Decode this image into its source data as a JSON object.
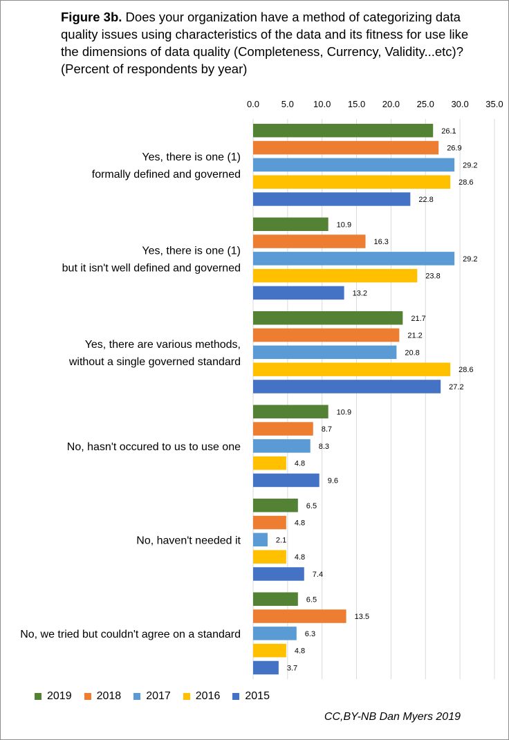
{
  "title": {
    "bold": "Figure 3b.",
    "text": " Does your organization have a method of categorizing data quality issues using characteristics of the data and its fitness for use like the dimensions of data quality (Completeness, Currency, Validity...etc)? (Percent of respondents by year)"
  },
  "credit": "CC,BY-NB Dan Myers 2019",
  "colors": {
    "2019": "#548235",
    "2018": "#ed7d31",
    "2017": "#5b9bd5",
    "2016": "#ffc000",
    "2015": "#4472c4"
  },
  "chart_data": {
    "type": "bar",
    "orientation": "horizontal",
    "xlim": [
      0,
      35
    ],
    "xticks": [
      "0.0",
      "5.0",
      "10.0",
      "15.0",
      "20.0",
      "25.0",
      "30.0",
      "35.0"
    ],
    "grid": true,
    "legend_position": "bottom",
    "categories": [
      [
        "Yes, there is one (1)",
        "formally defined and governed"
      ],
      [
        "Yes, there is one (1)",
        "but it isn't well defined and governed"
      ],
      [
        "Yes, there are various methods,",
        "without a single governed standard"
      ],
      [
        "No, hasn't occured to us to use one"
      ],
      [
        "No, haven't needed it"
      ],
      [
        "No, we tried but couldn't agree on a standard"
      ]
    ],
    "series": [
      {
        "name": "2019",
        "values": [
          26.1,
          10.9,
          21.7,
          10.9,
          6.5,
          6.5
        ],
        "labels": [
          "26.1",
          "10.9",
          "21.7",
          "10.9",
          "6.5",
          "6.5"
        ]
      },
      {
        "name": "2018",
        "values": [
          26.9,
          16.3,
          21.2,
          8.7,
          4.8,
          13.5
        ],
        "labels": [
          "26.9",
          "16.3",
          "21.2",
          "8.7",
          "4.8",
          "13.5"
        ]
      },
      {
        "name": "2017",
        "values": [
          29.2,
          29.2,
          20.8,
          8.3,
          2.1,
          6.3
        ],
        "labels": [
          "29.2",
          "29.2",
          "20.8",
          "8.3",
          "2.1",
          "6.3"
        ]
      },
      {
        "name": "2016",
        "values": [
          28.6,
          23.8,
          28.6,
          4.8,
          4.8,
          4.8
        ],
        "labels": [
          "28.6",
          "23.8",
          "28.6",
          "4.8",
          "4.8",
          "4.8"
        ]
      },
      {
        "name": "2015",
        "values": [
          22.8,
          13.2,
          27.2,
          9.6,
          7.4,
          3.7
        ],
        "labels": [
          "22.8",
          "13.2",
          "27.2",
          "9.6",
          "7.4",
          "3.7"
        ]
      }
    ]
  }
}
